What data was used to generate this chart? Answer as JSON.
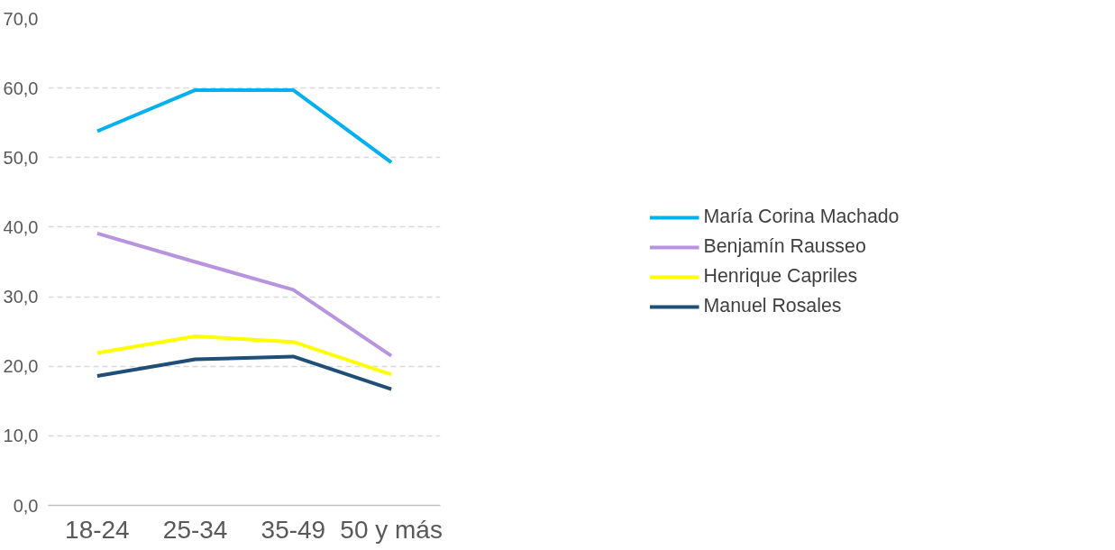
{
  "chart_data": {
    "type": "line",
    "categories": [
      "18-24",
      "25-34",
      "35-49",
      "50 y más"
    ],
    "series": [
      {
        "name": "María Corina Machado",
        "color": "#00b0f0",
        "values": [
          53.8,
          59.7,
          59.7,
          49.3
        ]
      },
      {
        "name": "Benjamín Rausseo",
        "color": "#b894e0",
        "values": [
          39.1,
          35.0,
          31.0,
          21.5
        ]
      },
      {
        "name": "Henrique Capriles",
        "color": "#ffff00",
        "values": [
          21.9,
          24.3,
          23.5,
          18.8
        ]
      },
      {
        "name": "Manuel Rosales",
        "color": "#1f4e79",
        "values": [
          18.6,
          21.0,
          21.4,
          16.7
        ]
      }
    ],
    "ylim": [
      0,
      70
    ],
    "yticks": [
      {
        "value": 0,
        "label": "0,0"
      },
      {
        "value": 10,
        "label": "10,0"
      },
      {
        "value": 20,
        "label": "20,0"
      },
      {
        "value": 30,
        "label": "30,0"
      },
      {
        "value": 40,
        "label": "40,0"
      },
      {
        "value": 50,
        "label": "50,0"
      },
      {
        "value": 60,
        "label": "60,0"
      },
      {
        "value": 70,
        "label": "70,0"
      }
    ],
    "grid": "y",
    "legend": "right",
    "marker": "none",
    "line_style": "solid"
  }
}
